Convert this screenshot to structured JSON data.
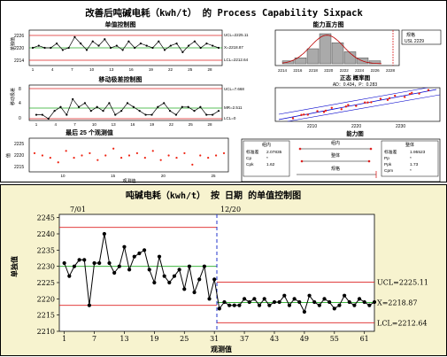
{
  "sixpack": {
    "title": "改善后吨碱电耗（kwh/t） 的 Process Capability Sixpack",
    "ichart": {
      "title": "单值控制图",
      "ylabel": "单独值",
      "ucl_label": "UCL=2225.11",
      "mean_label": "X=2218.87",
      "lcl_label": "LCL=2212.64",
      "yticks": [
        "2226",
        "2220",
        "2214"
      ],
      "xticks": [
        "1",
        "4",
        "7",
        "10",
        "13",
        "16",
        "19",
        "22",
        "25",
        "28"
      ],
      "values": [
        2219,
        2220,
        2219,
        2219,
        2221,
        2218,
        2219,
        2224,
        2221,
        2218,
        2222,
        2220,
        2223,
        2219,
        2220,
        2218,
        2222,
        2219,
        2221,
        2220,
        2219,
        2222,
        2218,
        2220,
        2221,
        2217,
        2220,
        2222,
        2219,
        2221,
        2220,
        2219
      ]
    },
    "mrchart": {
      "title": "移动极差控制图",
      "ylabel": "移动极差",
      "ucl_label": "UCL=7.668",
      "mean_label": "MR=2.511",
      "lcl_label": "LCL=0",
      "yticks": [
        "8",
        "4",
        "0"
      ],
      "xticks": [
        "1",
        "4",
        "7",
        "10",
        "13",
        "16",
        "19",
        "22",
        "25",
        "28"
      ],
      "values": [
        1,
        1,
        0,
        2,
        3,
        1,
        5,
        3,
        4,
        2,
        3,
        2,
        4,
        1,
        2,
        4,
        3,
        2,
        1,
        1,
        3,
        4,
        2,
        1,
        3,
        3,
        2,
        3,
        1,
        1,
        2
      ]
    },
    "last25": {
      "title": "最后 25 个观测值",
      "ylabel": "值",
      "xlabel": "观测值",
      "yticks": [
        "2225",
        "2220",
        "2215"
      ],
      "xticks": [
        "10",
        "15",
        "20",
        "25"
      ],
      "values": [
        2221,
        2220,
        2219,
        2217,
        2222,
        2219,
        2220,
        2221,
        2218,
        2220,
        2223,
        2219,
        2220,
        2221,
        2219,
        2222,
        2218,
        2220,
        2219,
        2221,
        2216,
        2220,
        2219,
        2220,
        2221
      ]
    },
    "histogram": {
      "title": "能力直方图",
      "usl_label": "规格",
      "usl_value": "USL 2229",
      "xticks": [
        "2214",
        "2216",
        "2218",
        "2220",
        "2222",
        "2224",
        "2226",
        "2228"
      ],
      "bars": [
        1,
        2,
        5,
        10,
        7,
        4,
        2,
        1
      ]
    },
    "probplot": {
      "title": "正态 概率图",
      "stats": "AD：0.434，P：0.283",
      "xticks": [
        "2210",
        "2220",
        "2230"
      ]
    },
    "capability": {
      "title": "能力图",
      "within_label": "组内",
      "overall_label": "整体",
      "spec_label": "规格",
      "within_stats": [
        {
          "k": "标准差",
          "v": "2.07835"
        },
        {
          "k": "Cp",
          "v": "*"
        },
        {
          "k": "Cpk",
          "v": "1.62"
        }
      ],
      "overall_stats": [
        {
          "k": "标准差",
          "v": "1.95523"
        },
        {
          "k": "Pp",
          "v": "*"
        },
        {
          "k": "Ppk",
          "v": "1.73"
        },
        {
          "k": "Cpm",
          "v": "*"
        }
      ]
    }
  },
  "chart_data": {
    "type": "line",
    "title": "吨碱电耗（kwh/t） 按 日期 的单值控制图",
    "xlabel": "观测值",
    "ylabel": "单独值",
    "stage_labels": [
      "7/01",
      "12/20"
    ],
    "stage_break": 31,
    "ucl_label": "UCL=2225.11",
    "mean_label": "X=2218.87",
    "lcl_label": "LCL=2212.64",
    "stage1_limits": {
      "ucl": 2242,
      "mean": 2230,
      "lcl": 2218
    },
    "stage2_limits": {
      "ucl": 2225.11,
      "mean": 2218.87,
      "lcl": 2212.64
    },
    "ylim": [
      2210,
      2246
    ],
    "xlim": [
      0,
      63
    ],
    "yticks": [
      2210,
      2215,
      2220,
      2225,
      2230,
      2235,
      2240,
      2245
    ],
    "xticks": [
      1,
      7,
      13,
      19,
      25,
      31,
      37,
      43,
      49,
      55,
      61
    ],
    "x": [
      1,
      2,
      3,
      4,
      5,
      6,
      7,
      8,
      9,
      10,
      11,
      12,
      13,
      14,
      15,
      16,
      17,
      18,
      19,
      20,
      21,
      22,
      23,
      24,
      25,
      26,
      27,
      28,
      29,
      30,
      31,
      32,
      33,
      34,
      35,
      36,
      37,
      38,
      39,
      40,
      41,
      42,
      43,
      44,
      45,
      46,
      47,
      48,
      49,
      50,
      51,
      52,
      53,
      54,
      55,
      56,
      57,
      58,
      59,
      60,
      61,
      62,
      63
    ],
    "values": [
      2231,
      2227,
      2230,
      2232,
      2232,
      2218,
      2231,
      2231,
      2240,
      2231,
      2228,
      2230,
      2236,
      2229,
      2233,
      2234,
      2235,
      2229,
      2225,
      2233,
      2227,
      2225,
      2227,
      2229,
      2223,
      2230,
      2222,
      2226,
      2230,
      2220,
      2226,
      2217,
      2219,
      2218,
      2218,
      2218,
      2220,
      2219,
      2220,
      2218,
      2220,
      2218,
      2219,
      2219,
      2221,
      2218,
      2220,
      2219,
      2216,
      2221,
      2219,
      2218,
      2220,
      2219,
      2217,
      2218,
      2221,
      2219,
      2218,
      2220,
      2219,
      2218,
      2219
    ]
  }
}
